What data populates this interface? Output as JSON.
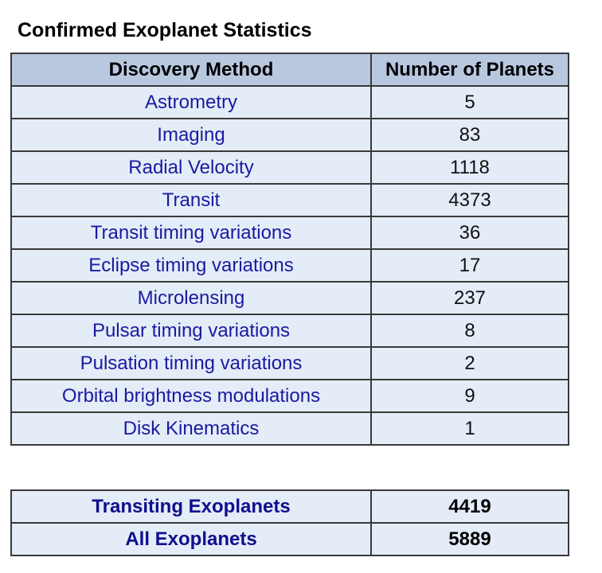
{
  "title": "Confirmed Exoplanet Statistics",
  "table": {
    "headers": [
      "Discovery Method",
      "Number of Planets"
    ],
    "rows": [
      {
        "method": "Astrometry",
        "count": "5"
      },
      {
        "method": "Imaging",
        "count": "83"
      },
      {
        "method": "Radial Velocity",
        "count": "1118"
      },
      {
        "method": "Transit",
        "count": "4373"
      },
      {
        "method": "Transit timing variations",
        "count": "36"
      },
      {
        "method": "Eclipse timing variations",
        "count": "17"
      },
      {
        "method": "Microlensing",
        "count": "237"
      },
      {
        "method": "Pulsar timing variations",
        "count": "8"
      },
      {
        "method": "Pulsation timing variations",
        "count": "2"
      },
      {
        "method": "Orbital brightness modulations",
        "count": "9"
      },
      {
        "method": "Disk Kinematics",
        "count": "1"
      }
    ]
  },
  "totals": [
    {
      "label": "Transiting Exoplanets",
      "value": "4419"
    },
    {
      "label": "All Exoplanets",
      "value": "5889"
    }
  ],
  "colors": {
    "header_bg": "#b8c8df",
    "cell_bg": "#e4ecf8",
    "method_text": "#1a1aa0",
    "border": "#3a3a3a"
  }
}
